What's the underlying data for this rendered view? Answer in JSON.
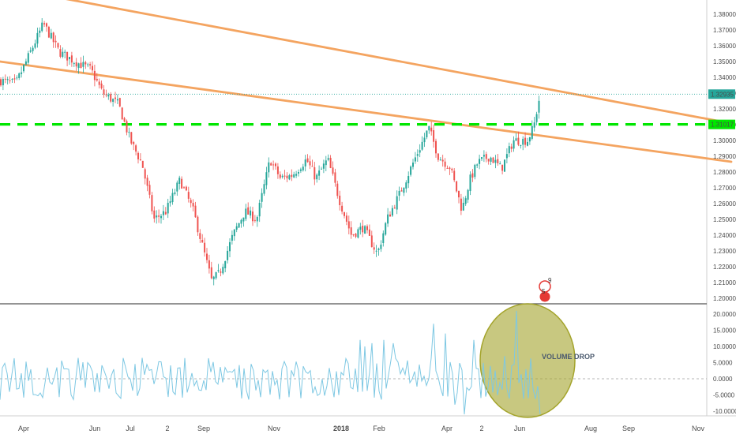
{
  "colors": {
    "up": "#26a69a",
    "down": "#ef5350",
    "trendline": "#f4a460",
    "support": "#00e600",
    "oscillator": "#7ec8e3",
    "ellipse": "#a4a42c",
    "price_badge": "#26a69a",
    "last_price_line": "#26a69a"
  },
  "chart_data": [
    {
      "type": "candlestick",
      "title": "",
      "xlabel": "",
      "ylabel": "",
      "x_ticks": [
        "Apr",
        "Jun",
        "Jul",
        "2",
        "Sep",
        "Nov",
        "2018",
        "Feb",
        "Apr",
        "2",
        "Jun",
        "Aug",
        "Sep",
        "Nov"
      ],
      "x_ticks_bold": [
        "2018"
      ],
      "y_ticks": [
        "1.38000",
        "1.37000",
        "1.36000",
        "1.35000",
        "1.34000",
        "1.33000",
        "1.32000",
        "1.31000",
        "1.30000",
        "1.29000",
        "1.28000",
        "1.27000",
        "1.26000",
        "1.25000",
        "1.24000",
        "1.23000",
        "1.22000",
        "1.21000",
        "1.20000"
      ],
      "ylim": [
        1.196,
        1.386
      ],
      "last_price": "1.32935",
      "support_price": "1.31017",
      "grid": false,
      "waypoints": [
        {
          "t": 0,
          "p": 1.338
        },
        {
          "t": 20,
          "p": 1.336
        },
        {
          "t": 35,
          "p": 1.352
        },
        {
          "t": 55,
          "p": 1.374
        },
        {
          "t": 75,
          "p": 1.356
        },
        {
          "t": 95,
          "p": 1.35
        },
        {
          "t": 115,
          "p": 1.345
        },
        {
          "t": 130,
          "p": 1.33
        },
        {
          "t": 150,
          "p": 1.323
        },
        {
          "t": 165,
          "p": 1.3
        },
        {
          "t": 180,
          "p": 1.285
        },
        {
          "t": 195,
          "p": 1.25
        },
        {
          "t": 210,
          "p": 1.255
        },
        {
          "t": 228,
          "p": 1.275
        },
        {
          "t": 245,
          "p": 1.255
        },
        {
          "t": 258,
          "p": 1.23
        },
        {
          "t": 268,
          "p": 1.211
        },
        {
          "t": 278,
          "p": 1.216
        },
        {
          "t": 295,
          "p": 1.24
        },
        {
          "t": 310,
          "p": 1.255
        },
        {
          "t": 325,
          "p": 1.25
        },
        {
          "t": 342,
          "p": 1.288
        },
        {
          "t": 355,
          "p": 1.276
        },
        {
          "t": 370,
          "p": 1.278
        },
        {
          "t": 388,
          "p": 1.288
        },
        {
          "t": 400,
          "p": 1.276
        },
        {
          "t": 415,
          "p": 1.288
        },
        {
          "t": 430,
          "p": 1.262
        },
        {
          "t": 445,
          "p": 1.24
        },
        {
          "t": 460,
          "p": 1.245
        },
        {
          "t": 478,
          "p": 1.228
        },
        {
          "t": 490,
          "p": 1.25
        },
        {
          "t": 505,
          "p": 1.265
        },
        {
          "t": 525,
          "p": 1.288
        },
        {
          "t": 543,
          "p": 1.308
        },
        {
          "t": 555,
          "p": 1.29
        },
        {
          "t": 570,
          "p": 1.283
        },
        {
          "t": 585,
          "p": 1.256
        },
        {
          "t": 595,
          "p": 1.275
        },
        {
          "t": 605,
          "p": 1.286
        },
        {
          "t": 620,
          "p": 1.29
        },
        {
          "t": 635,
          "p": 1.282
        },
        {
          "t": 650,
          "p": 1.3
        },
        {
          "t": 668,
          "p": 1.3
        },
        {
          "t": 676,
          "p": 1.309
        },
        {
          "t": 684,
          "p": 1.3294
        }
      ],
      "trendlines": [
        {
          "name": "upper",
          "from": {
            "t": 0,
            "p": 1.3975
          },
          "to": {
            "t": 926,
            "p": 1.3108
          }
        },
        {
          "name": "lower",
          "from": {
            "t": 0,
            "p": 1.35
          },
          "to": {
            "t": 926,
            "p": 1.2865
          }
        }
      ]
    },
    {
      "type": "line",
      "title": "",
      "y_ticks": [
        "20.0000",
        "15.0000",
        "10.0000",
        "5.0000",
        "0.0000",
        "-5.0000",
        "-10.0000"
      ],
      "ylim": [
        -12,
        22
      ],
      "zero_line": true,
      "annotation": "VOLUME DROP",
      "spikes": [
        {
          "t": 455,
          "v": 12
        },
        {
          "t": 462,
          "v": 10
        },
        {
          "t": 470,
          "v": 11
        },
        {
          "t": 485,
          "v": 12
        },
        {
          "t": 497,
          "v": 11
        },
        {
          "t": 550,
          "v": 17
        },
        {
          "t": 563,
          "v": 14
        },
        {
          "t": 575,
          "v": -8
        },
        {
          "t": 588,
          "v": -11
        },
        {
          "t": 600,
          "v": 12
        },
        {
          "t": 640,
          "v": 7
        },
        {
          "t": 655,
          "v": 21
        },
        {
          "t": 668,
          "v": -6
        },
        {
          "t": 685,
          "v": -11
        }
      ]
    }
  ],
  "badges": {
    "events_top": "9",
    "events_bottom": "5"
  }
}
